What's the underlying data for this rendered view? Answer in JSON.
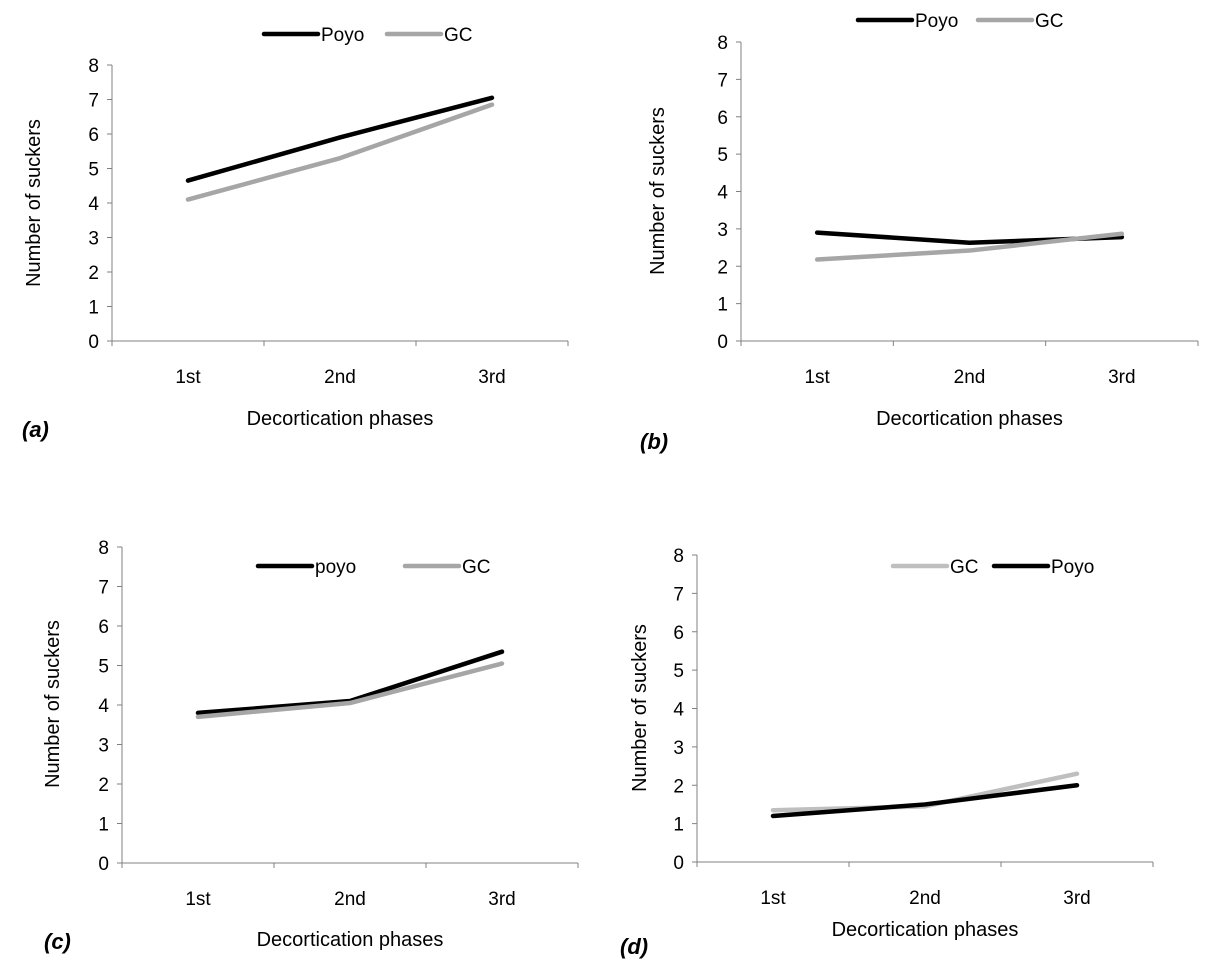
{
  "chart_data": [
    {
      "type": "line",
      "panel_label": "(a)",
      "categories": [
        "1st",
        "2nd",
        "3rd"
      ],
      "yticks": [
        "0",
        "1",
        "2",
        "3",
        "4",
        "5",
        "6",
        "7",
        "8"
      ],
      "series": [
        {
          "name": "Poyo",
          "values": [
            4.65,
            5.9,
            7.05
          ],
          "color": "#000000"
        },
        {
          "name": "GC",
          "values": [
            4.1,
            5.3,
            6.85
          ],
          "color": "#a6a6a6"
        }
      ],
      "xlabel": "Decortication phases",
      "ylabel": "Number of suckers",
      "ylim": [
        0,
        8
      ],
      "grid": false,
      "legend_position": "top"
    },
    {
      "type": "line",
      "panel_label": "(b)",
      "categories": [
        "1st",
        "2nd",
        "3rd"
      ],
      "yticks": [
        "0",
        "1",
        "2",
        "3",
        "4",
        "5",
        "6",
        "7",
        "8"
      ],
      "series": [
        {
          "name": "Poyo",
          "values": [
            2.9,
            2.63,
            2.78
          ],
          "color": "#000000"
        },
        {
          "name": "GC",
          "values": [
            2.18,
            2.42,
            2.87
          ],
          "color": "#a6a6a6"
        }
      ],
      "xlabel": "Decortication phases",
      "ylabel": "Number of suckers",
      "ylim": [
        0,
        8
      ],
      "grid": false,
      "legend_position": "top"
    },
    {
      "type": "line",
      "panel_label": "(c)",
      "categories": [
        "1st",
        "2nd",
        "3rd"
      ],
      "yticks": [
        "0",
        "1",
        "2",
        "3",
        "4",
        "5",
        "6",
        "7",
        "8"
      ],
      "series": [
        {
          "name": "poyo",
          "values": [
            3.8,
            4.1,
            5.35
          ],
          "color": "#000000"
        },
        {
          "name": "GC",
          "values": [
            3.7,
            4.05,
            5.05
          ],
          "color": "#a6a6a6"
        }
      ],
      "xlabel": "Decortication phases",
      "ylabel": "Number of suckers",
      "ylim": [
        0,
        8
      ],
      "grid": false,
      "legend_position": "top-right"
    },
    {
      "type": "line",
      "panel_label": "(d)",
      "categories": [
        "1st",
        "2nd",
        "3rd"
      ],
      "yticks": [
        "0",
        "1",
        "2",
        "3",
        "4",
        "5",
        "6",
        "7",
        "8"
      ],
      "series": [
        {
          "name": "GC",
          "values": [
            1.35,
            1.45,
            2.3
          ],
          "color": "#bfbfbf"
        },
        {
          "name": "Poyo",
          "values": [
            1.2,
            1.5,
            2.0
          ],
          "color": "#000000"
        }
      ],
      "xlabel": "Decortication phases",
      "ylabel": "Number of suckers",
      "ylim": [
        0,
        8
      ],
      "grid": false,
      "legend_position": "top-right"
    }
  ]
}
